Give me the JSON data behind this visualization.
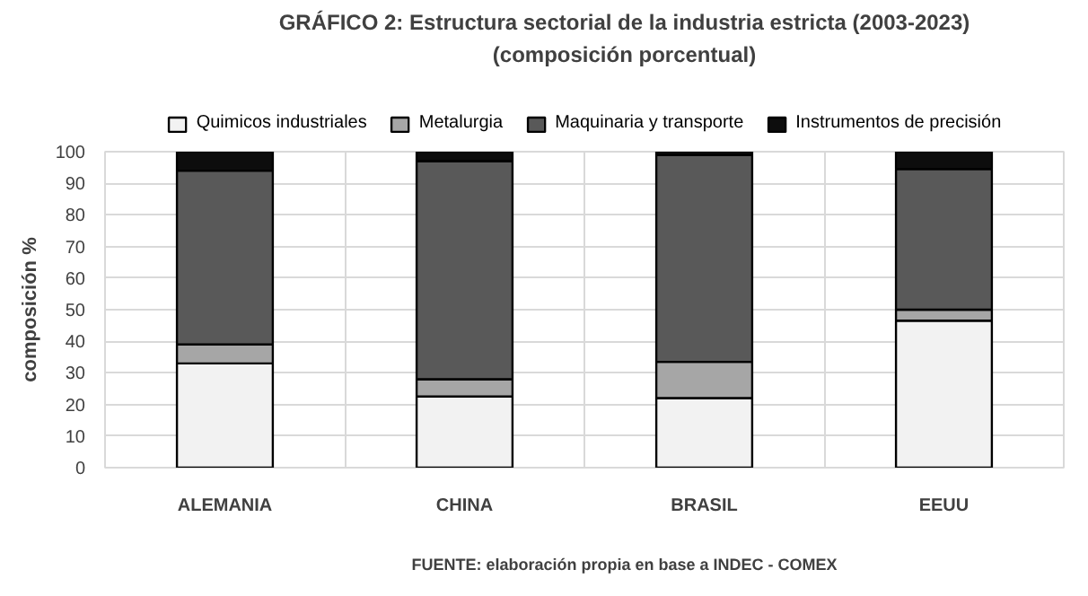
{
  "chart_data": {
    "type": "bar",
    "stacked": true,
    "title": "GRÁFICO 2: Estructura sectorial de la industria estricta (2003-2023)",
    "subtitle": "(composición porcentual)",
    "ylabel": "composición %",
    "categories": [
      "ALEMANIA",
      "CHINA",
      "BRASIL",
      "EEUU"
    ],
    "series": [
      {
        "name": "Quimicos industriales",
        "color": "#f2f2f2",
        "values": [
          33,
          22.5,
          22,
          46.5
        ]
      },
      {
        "name": "Metalurgia",
        "color": "#a6a6a6",
        "values": [
          6,
          5.5,
          11.5,
          3.5
        ]
      },
      {
        "name": "Maquinaria y transporte",
        "color": "#595959",
        "values": [
          55,
          69,
          65.5,
          44.5
        ]
      },
      {
        "name": "Instrumentos de precisión",
        "color": "#0d0d0d",
        "values": [
          6,
          3,
          1,
          5.5
        ]
      }
    ],
    "ylim": [
      0,
      100
    ],
    "yticks": [
      0,
      10,
      20,
      30,
      40,
      50,
      60,
      70,
      80,
      90,
      100
    ],
    "grid": true,
    "legend": "top",
    "annotations": [
      "FUENTE: elaboración propia en base a INDEC - COMEX"
    ]
  }
}
